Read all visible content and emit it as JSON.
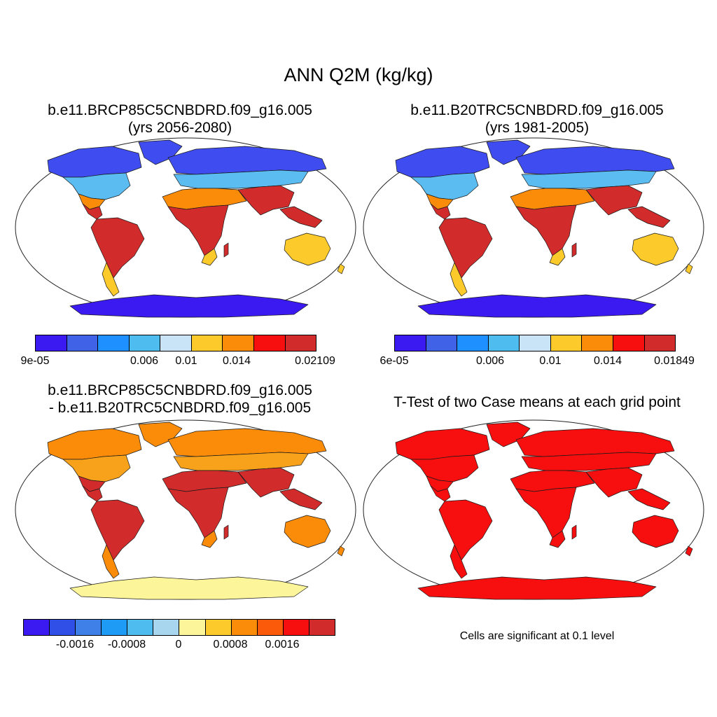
{
  "figure_title": "ANN Q2M (kg/kg)",
  "colors": {
    "land_outline": "#1a1a1a",
    "map_border": "#222222",
    "ocean": "#ffffff"
  },
  "panels": [
    {
      "title_line1": "b.e11.BRCP85C5CNBDRD.f09_g16.005",
      "title_line2": "(yrs 2056-2080)",
      "colorbar": {
        "colors": [
          "#3a1af0",
          "#3f62e6",
          "#1e90ff",
          "#4fbcef",
          "#c9e4f7",
          "#fccb2b",
          "#fb8c0a",
          "#f70e0e",
          "#d22b2b"
        ],
        "labels": [
          "9e-05",
          "0.006",
          "0.01",
          "0.014",
          "0.02109"
        ]
      },
      "fills": {
        "north_polar": "#3f4cf0",
        "north_mid": "#5abcf0",
        "tropics": "#d22b2b",
        "desert": "#fb8c0a",
        "south": "#fccb2b",
        "antarctica": "#3a1af0"
      }
    },
    {
      "title_line1": "b.e11.B20TRC5CNBDRD.f09_g16.005",
      "title_line2": "(yrs 1981-2005)",
      "colorbar": {
        "colors": [
          "#3a1af0",
          "#3f62e6",
          "#1e90ff",
          "#4fbcef",
          "#c9e4f7",
          "#fccb2b",
          "#fb8c0a",
          "#f70e0e",
          "#d22b2b"
        ],
        "labels": [
          "6e-05",
          "0.006",
          "0.01",
          "0.014",
          "0.01849"
        ]
      },
      "fills": {
        "north_polar": "#3f4cf0",
        "north_mid": "#5abcf0",
        "tropics": "#d22b2b",
        "desert": "#fb8c0a",
        "south": "#fccb2b",
        "antarctica": "#3a1af0"
      }
    },
    {
      "title_line1": "b.e11.BRCP85C5CNBDRD.f09_g16.005",
      "title_line2": "- b.e11.B20TRC5CNBDRD.f09_g16.005",
      "colorbar": {
        "colors": [
          "#3a1af0",
          "#2f4fe6",
          "#3f80e8",
          "#1e9bf5",
          "#4fbcef",
          "#a9d6ef",
          "#fdf59a",
          "#fccb2b",
          "#fb8c0a",
          "#fb5a0a",
          "#f70e0e",
          "#d22b2b"
        ],
        "labels": [
          "-0.0016",
          "-0.0008",
          "0",
          "0.0008",
          "0.0016"
        ]
      },
      "fills": {
        "north_polar": "#fb8c0a",
        "north_mid": "#f7a21a",
        "tropics": "#d22b2b",
        "desert": "#d22b2b",
        "south": "#fb8c0a",
        "antarctica": "#fdf59a"
      }
    },
    {
      "title_line1": "T-Test of two Case means at each grid point",
      "note": "Cells are significant at 0.1 level",
      "fills": {
        "north_polar": "#f70e0e",
        "north_mid": "#f70e0e",
        "tropics": "#f70e0e",
        "desert": "#f70e0e",
        "south": "#f70e0e",
        "antarctica": "#f70e0e"
      }
    }
  ]
}
